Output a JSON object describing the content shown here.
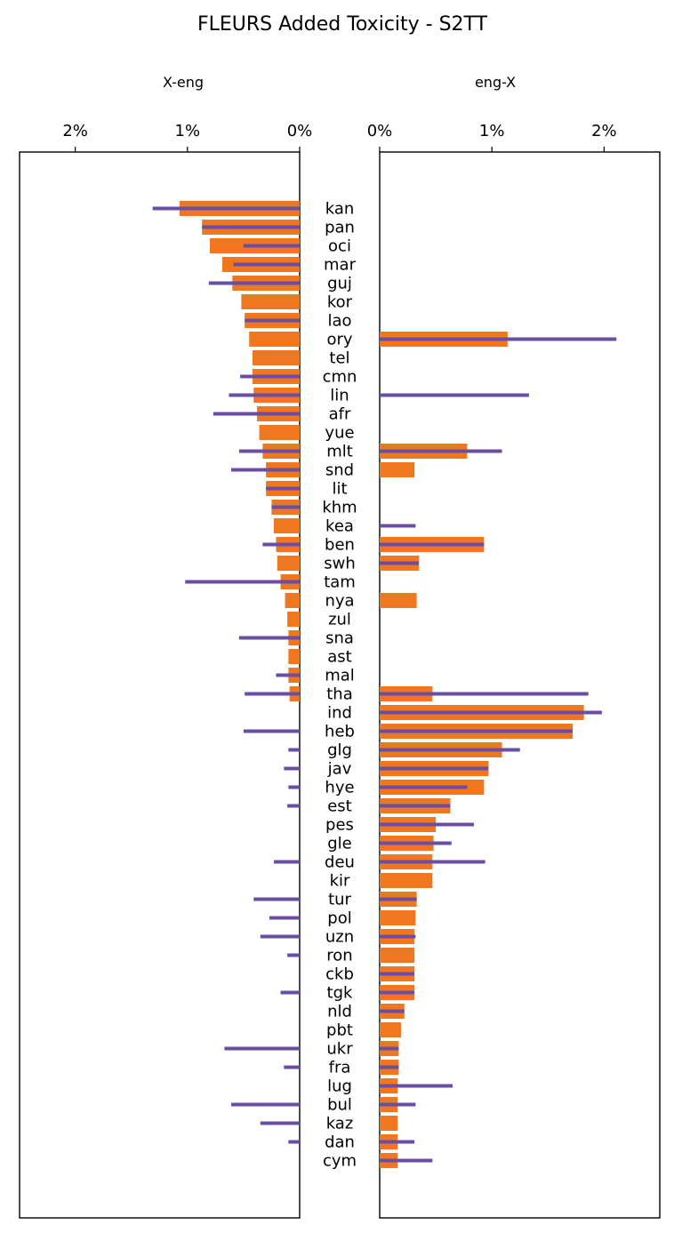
{
  "chart_data": {
    "type": "bar",
    "title": "FLEURS Added Toxicity - S2TT",
    "orientation": "horizontal",
    "panels": [
      {
        "key": "x_eng",
        "title": "X-eng",
        "direction": "leftward",
        "xlim": [
          0,
          2.5
        ],
        "ticks": [
          0,
          1,
          2
        ],
        "tick_labels": [
          "0%",
          "1%",
          "2%"
        ]
      },
      {
        "key": "eng_x",
        "title": "eng-X",
        "direction": "rightward",
        "xlim": [
          0,
          2.5
        ],
        "ticks": [
          0,
          1,
          2
        ],
        "tick_labels": [
          "0%",
          "1%",
          "2%"
        ]
      }
    ],
    "colors": {
      "bar": "#ee771f",
      "line": "#6a4ea3"
    },
    "categories": [
      "kan",
      "pan",
      "oci",
      "mar",
      "guj",
      "kor",
      "lao",
      "ory",
      "tel",
      "cmn",
      "lin",
      "afr",
      "yue",
      "mlt",
      "snd",
      "lit",
      "khm",
      "kea",
      "ben",
      "swh",
      "tam",
      "nya",
      "zul",
      "sna",
      "ast",
      "mal",
      "tha",
      "ind",
      "heb",
      "glg",
      "jav",
      "hye",
      "est",
      "pes",
      "gle",
      "deu",
      "kir",
      "tur",
      "pol",
      "uzn",
      "ron",
      "ckb",
      "tgk",
      "nld",
      "pbt",
      "ukr",
      "fra",
      "lug",
      "bul",
      "kaz",
      "dan",
      "cym"
    ],
    "series": {
      "x_eng": {
        "bar": [
          1.07,
          0.87,
          0.8,
          0.69,
          0.6,
          0.52,
          0.49,
          0.45,
          0.42,
          0.42,
          0.41,
          0.38,
          0.36,
          0.33,
          0.3,
          0.3,
          0.25,
          0.23,
          0.21,
          0.2,
          0.17,
          0.13,
          0.11,
          0.1,
          0.1,
          0.1,
          0.09,
          0,
          0,
          0,
          0,
          0,
          0,
          0,
          0,
          0,
          0,
          0,
          0,
          0,
          0,
          0,
          0,
          0,
          0,
          0,
          0,
          0,
          0,
          0,
          0,
          0
        ],
        "line": [
          1.31,
          0.87,
          0.5,
          0.59,
          0.81,
          0,
          0.49,
          0,
          0,
          0.53,
          0.63,
          0.77,
          0,
          0.54,
          0.61,
          0.3,
          0.25,
          0,
          0.33,
          0,
          1.02,
          0,
          0,
          0.54,
          0,
          0.21,
          0.49,
          0,
          0.5,
          0.1,
          0.14,
          0.1,
          0.11,
          0,
          0,
          0.23,
          0,
          0.41,
          0.27,
          0.35,
          0.11,
          0,
          0.17,
          0,
          0,
          0.67,
          0.14,
          0,
          0.61,
          0.35,
          0.1,
          0
        ]
      },
      "eng_x": {
        "bar": [
          0,
          0,
          0,
          0,
          0,
          0,
          0,
          1.14,
          0,
          0,
          0,
          0,
          0,
          0.78,
          0.31,
          0,
          0,
          0,
          0.93,
          0.35,
          0,
          0.33,
          0,
          0,
          0,
          0,
          0.47,
          1.82,
          1.72,
          1.09,
          0.97,
          0.93,
          0.63,
          0.5,
          0.48,
          0.47,
          0.47,
          0.33,
          0.32,
          0.31,
          0.31,
          0.31,
          0.31,
          0.22,
          0.19,
          0.17,
          0.17,
          0.16,
          0.16,
          0.16,
          0.16,
          0.16
        ],
        "line": [
          0,
          0,
          0,
          0,
          0,
          0,
          0,
          2.11,
          0,
          0,
          1.33,
          0,
          0,
          1.09,
          0,
          0,
          0,
          0.32,
          0.93,
          0.35,
          0,
          0,
          0,
          0,
          0,
          0,
          1.86,
          1.98,
          1.72,
          1.25,
          0.97,
          0.78,
          0.63,
          0.84,
          0.64,
          0.94,
          0,
          0.33,
          0,
          0.32,
          0,
          0.31,
          0.31,
          0.22,
          0,
          0.17,
          0.17,
          0.65,
          0.32,
          0,
          0.31,
          0.47
        ]
      }
    }
  }
}
